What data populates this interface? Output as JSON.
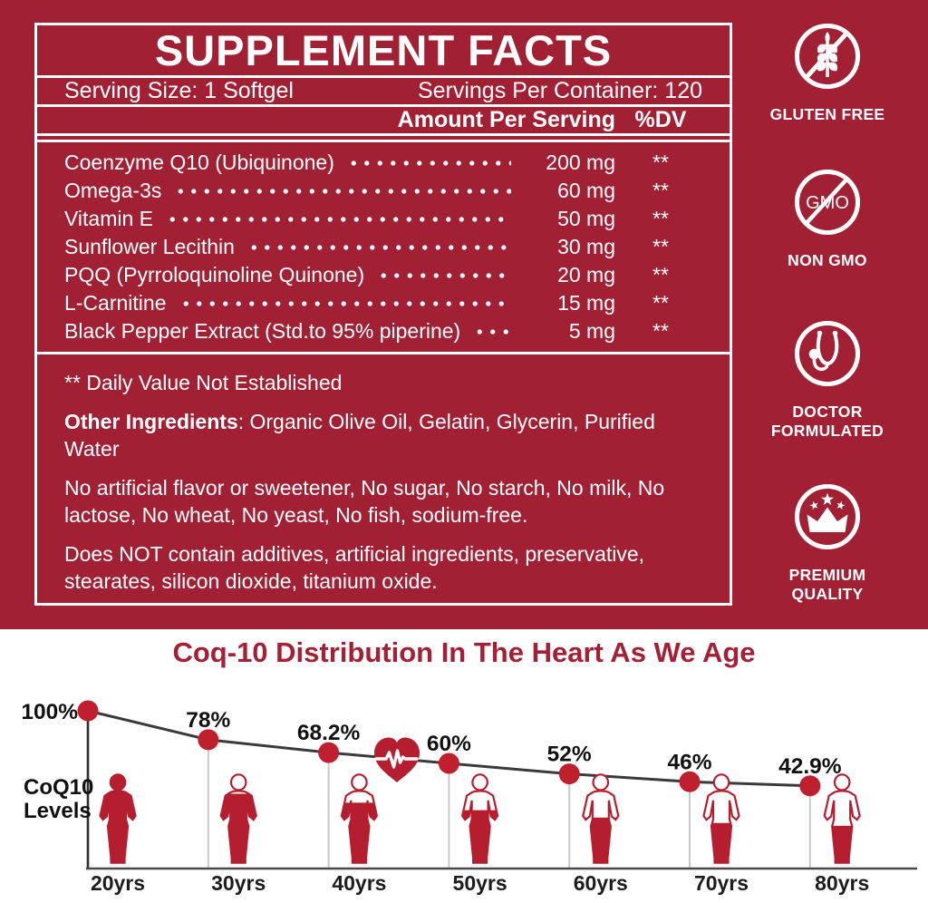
{
  "label": {
    "title": "SUPPLEMENT FACTS",
    "serving_size": "Serving Size: 1 Softgel",
    "servings_per_container": "Servings Per Container: 120",
    "amount_header": "Amount Per Serving",
    "dv_header": "%DV",
    "rows": [
      {
        "name": "Coenzyme Q10 (Ubiquinone)",
        "amount": "200 mg",
        "dv": "**"
      },
      {
        "name": "Omega-3s",
        "amount": "60 mg",
        "dv": "**"
      },
      {
        "name": "Vitamin E",
        "amount": "50 mg",
        "dv": "**"
      },
      {
        "name": "Sunflower Lecithin",
        "amount": "30 mg",
        "dv": "**"
      },
      {
        "name": "PQQ (Pyrroloquinoline Quinone)",
        "amount": "20 mg",
        "dv": "**"
      },
      {
        "name": "L-Carnitine",
        "amount": "15 mg",
        "dv": "**"
      },
      {
        "name": "Black Pepper Extract (Std.to 95% piperine)",
        "amount": "5 mg",
        "dv": "**"
      }
    ],
    "footnotes": {
      "dv_note": "** Daily Value Not Established",
      "other_ingredients_label": "Other Ingredients",
      "other_ingredients_value": ": Organic Olive Oil, Gelatin, Glycerin, Purified Water",
      "free_from": "No artificial flavor or sweetener, No sugar, No starch, No milk, No lactose, No wheat, No yeast, No fish, sodium-free.",
      "does_not_contain": "Does NOT contain additives, artificial ingredients, preservative, stearates, silicon dioxide, titanium oxide."
    }
  },
  "badges": [
    {
      "icon": "gluten-free-icon",
      "label": "GLUTEN FREE"
    },
    {
      "icon": "non-gmo-icon",
      "label": "NON GMO",
      "icon_text": "GMO"
    },
    {
      "icon": "doctor-formulated-icon",
      "label": "DOCTOR FORMULATED"
    },
    {
      "icon": "premium-quality-icon",
      "label": "PREMIUM QUALITY"
    }
  ],
  "chart_data": {
    "type": "line",
    "title": "Coq-10 Distribution In The Heart As We Age",
    "ylabel": "CoQ10 Levels",
    "ylabel_display": "CoQ10\nLevels",
    "categories": [
      "20yrs",
      "30yrs",
      "40yrs",
      "50yrs",
      "60yrs",
      "70yrs",
      "80yrs"
    ],
    "values": [
      100,
      78,
      68.2,
      60,
      52,
      46,
      42.9
    ],
    "point_labels": [
      "100%",
      "78%",
      "68.2%",
      "60%",
      "52%",
      "46%",
      "42.9%"
    ],
    "ylim": [
      0,
      100
    ],
    "grid": false,
    "legend": false,
    "annotations": [
      "heart-with-ecg icon between 40yrs and 50yrs",
      "human figures filled proportionally to CoQ10 level"
    ]
  },
  "colors": {
    "background_red": "#A22033",
    "accent_red": "#B41E2E",
    "dot_red": "#C0202E",
    "title_red": "#A32036",
    "trend_line": "#3a3a3a",
    "drop_line_gray": "#c9c9c9",
    "text_dark": "#111111",
    "white": "#ffffff"
  }
}
